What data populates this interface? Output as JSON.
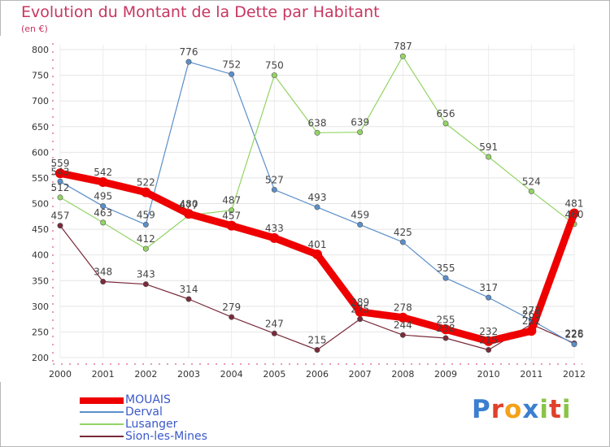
{
  "title": "Evolution du Montant de la Dette par Habitant",
  "subtitle": "(en €)",
  "brand": {
    "letters": [
      "P",
      "r",
      "o",
      "x",
      "i",
      "t",
      "i"
    ],
    "colors": [
      "#3a7fd0",
      "#e0402a",
      "#f3a21a",
      "#3a7fd0",
      "#8bc34a",
      "#e0402a",
      "#8bc34a"
    ]
  },
  "chart_data": {
    "type": "line",
    "x": [
      "2000",
      "2001",
      "2002",
      "2003",
      "2004",
      "2005",
      "2006",
      "2007",
      "2008",
      "2009",
      "2010",
      "2011",
      "2012"
    ],
    "ylim": [
      200,
      800
    ],
    "yticks": [
      "200",
      "250",
      "300",
      "350",
      "400",
      "450",
      "500",
      "550",
      "600",
      "650",
      "700",
      "750",
      "800"
    ],
    "grid": true,
    "legend_position": "bottom-left",
    "series": [
      {
        "name": "Sion-les-Mines",
        "color": "#7a2a3a",
        "values": [
          457,
          348,
          343,
          314,
          279,
          247,
          215,
          275,
          244,
          238,
          215,
          265,
          228
        ],
        "labels": [
          "457",
          "348",
          "343",
          "314",
          "279",
          "247",
          "215",
          "275",
          "244",
          "238",
          "215",
          "265",
          "228"
        ]
      },
      {
        "name": "Derval",
        "color": "#5b8fc9",
        "values": [
          543,
          495,
          459,
          776,
          752,
          527,
          493,
          459,
          425,
          355,
          317,
          273,
          226
        ],
        "labels": [
          "543",
          "495",
          "459",
          "776",
          "752",
          "527",
          "493",
          "459",
          "425",
          "355",
          "317",
          "273",
          "226"
        ]
      },
      {
        "name": "Lusanger",
        "color": "#93d465",
        "values": [
          512,
          463,
          412,
          477,
          487,
          750,
          638,
          639,
          787,
          656,
          591,
          524,
          460
        ],
        "labels": [
          "512",
          "463",
          "412",
          "477",
          "487",
          "750",
          "638",
          "639",
          "787",
          "656",
          "591",
          "524",
          "460"
        ]
      },
      {
        "name": "MOUAIS",
        "color": "#ee0000",
        "values": [
          559,
          542,
          522,
          480,
          457,
          433,
          401,
          289,
          278,
          255,
          232,
          252,
          481
        ],
        "labels": [
          "559",
          "542",
          "522",
          "480",
          "457",
          "433",
          "401",
          "289",
          "278",
          "255",
          "232",
          "252",
          "481"
        ]
      }
    ],
    "legend": [
      {
        "name": "MOUAIS",
        "color": "#ee0000"
      },
      {
        "name": "Derval",
        "color": "#5b8fc9"
      },
      {
        "name": "Lusanger",
        "color": "#93d465"
      },
      {
        "name": "Sion-les-Mines",
        "color": "#7a2a3a"
      }
    ]
  }
}
